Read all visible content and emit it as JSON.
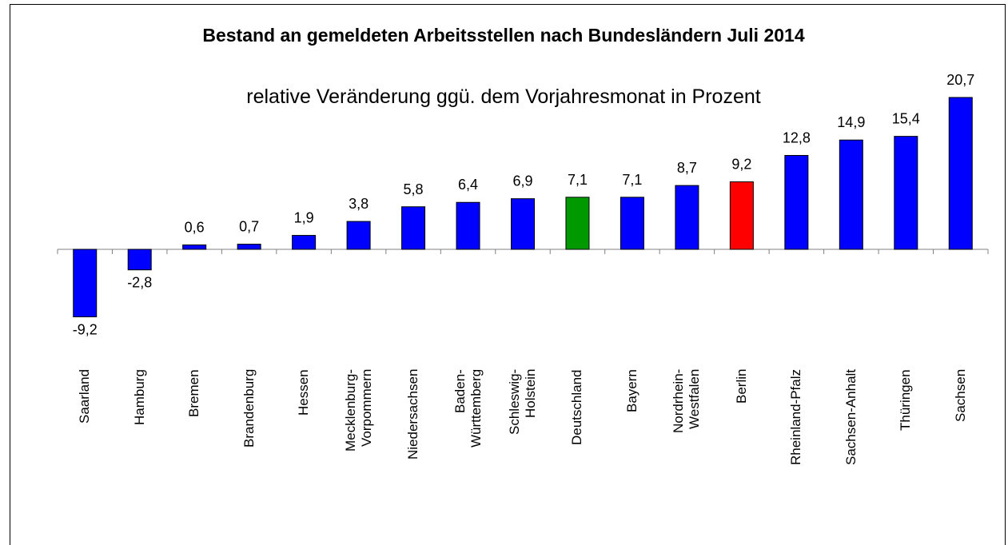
{
  "chart_data": {
    "type": "bar",
    "title": "Bestand an gemeldeten Arbeitsstellen nach Bundesländern Juli 2014",
    "subtitle": "relative Veränderung ggü. dem Vorjahresmonat in Prozent",
    "categories": [
      "Saarland",
      "Hamburg",
      "Bremen",
      "Brandenburg",
      "Hessen",
      "Mecklenburg-\nVorpommern",
      "Niedersachsen",
      "Baden-\nWürttemberg",
      "Schleswig-\nHolstein",
      "Deutschland",
      "Bayern",
      "Nordrhein-\nWestfalen",
      "Berlin",
      "Rheinland-Pfalz",
      "Sachsen-Anhalt",
      "Thüringen",
      "Sachsen"
    ],
    "values": [
      -9.2,
      -2.8,
      0.6,
      0.7,
      1.9,
      3.8,
      5.8,
      6.4,
      6.9,
      7.1,
      7.1,
      8.7,
      9.2,
      12.8,
      14.9,
      15.4,
      20.7
    ],
    "value_labels": [
      "-9,2",
      "-2,8",
      "0,6",
      "0,7",
      "1,9",
      "3,8",
      "5,8",
      "6,4",
      "6,9",
      "7,1",
      "7,1",
      "8,7",
      "9,2",
      "12,8",
      "14,9",
      "15,4",
      "20,7"
    ],
    "colors": [
      "#0000ff",
      "#0000ff",
      "#0000ff",
      "#0000ff",
      "#0000ff",
      "#0000ff",
      "#0000ff",
      "#0000ff",
      "#0000ff",
      "#009900",
      "#0000ff",
      "#0000ff",
      "#ff0000",
      "#0000ff",
      "#0000ff",
      "#0000ff",
      "#0000ff"
    ],
    "ylim": [
      -10,
      22
    ],
    "grid": false
  }
}
